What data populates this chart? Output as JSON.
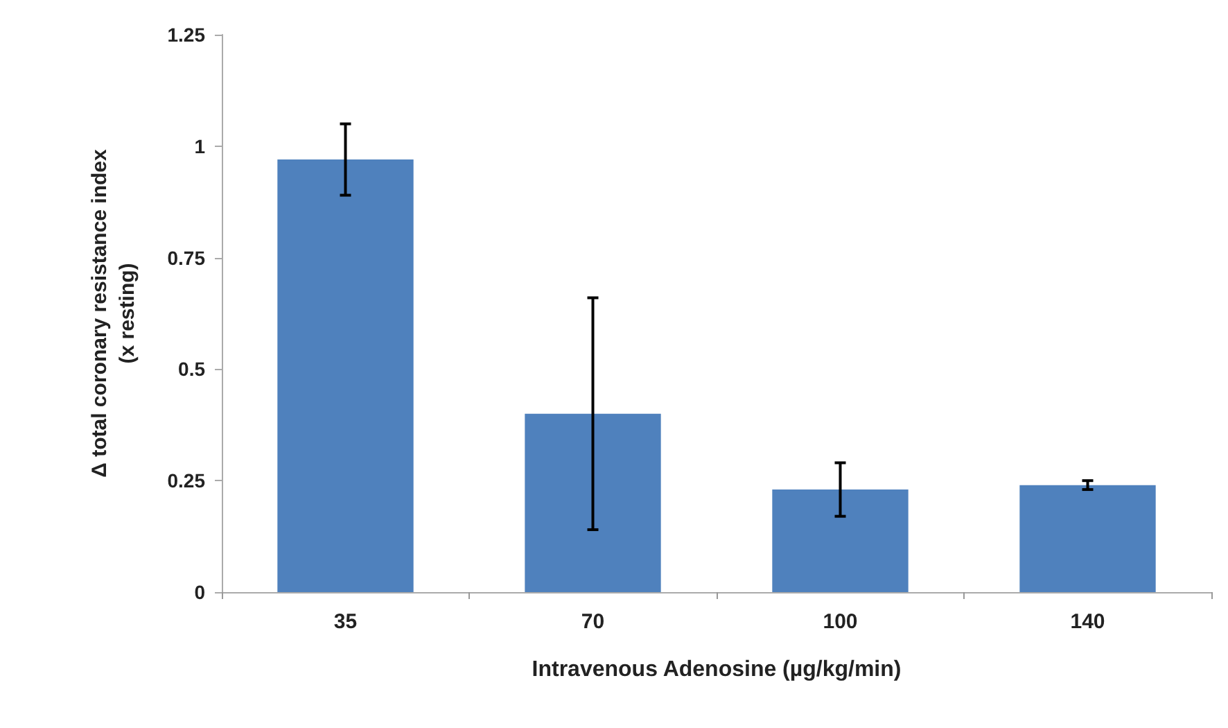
{
  "chart_data": {
    "type": "bar",
    "xlabel": "Intravenous Adenosine (µg/kg/min)",
    "ylabel": "Δ total coronary resistance index\n(x resting)",
    "categories": [
      "35",
      "70",
      "100",
      "140"
    ],
    "values": [
      0.97,
      0.4,
      0.23,
      0.24
    ],
    "errors": [
      0.08,
      0.26,
      0.06,
      0.01
    ],
    "color": "#4f81bd",
    "ylim": [
      0,
      1.25
    ],
    "yticks": [
      0,
      0.25,
      0.5,
      0.75,
      1,
      1.25
    ],
    "grid": false
  }
}
